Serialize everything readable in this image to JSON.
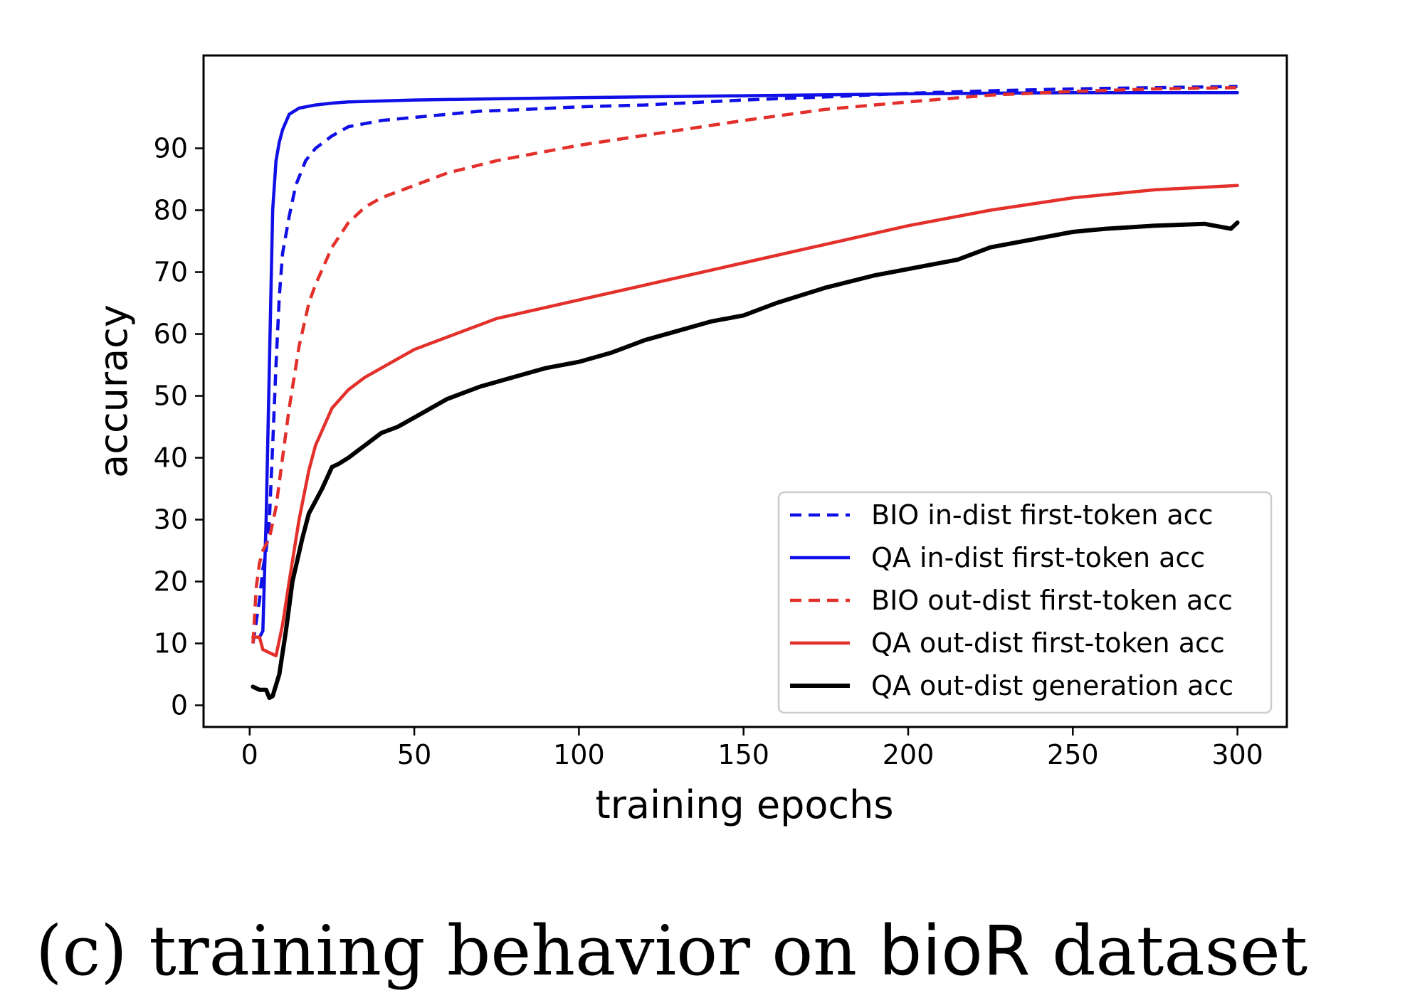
{
  "chart_data": {
    "type": "line",
    "xlabel": "training epochs",
    "ylabel": "accuracy",
    "xlim": [
      -14,
      315
    ],
    "ylim": [
      -3.5,
      105
    ],
    "xticks": [
      0,
      50,
      100,
      150,
      200,
      250,
      300
    ],
    "yticks": [
      0,
      10,
      20,
      30,
      40,
      50,
      60,
      70,
      80,
      90
    ],
    "grid": false,
    "legend_position": "lower-right",
    "series": [
      {
        "name": "BIO in-dist first-token acc",
        "color": "#1010e6",
        "style": "dashed",
        "x": [
          1,
          3,
          4,
          5,
          6,
          7,
          8,
          9,
          10,
          12,
          14,
          17,
          20,
          25,
          30,
          40,
          50,
          60,
          70,
          80,
          100,
          120,
          150,
          175,
          200,
          225,
          250,
          275,
          300
        ],
        "y": [
          10,
          17,
          22,
          25,
          30,
          42,
          55,
          66,
          73,
          79,
          84,
          88,
          90,
          92,
          93.5,
          94.5,
          95,
          95.5,
          96,
          96.2,
          96.7,
          97,
          97.8,
          98.3,
          98.9,
          99.3,
          99.6,
          99.8,
          100
        ]
      },
      {
        "name": "QA in-dist first-token acc",
        "color": "#1010e6",
        "style": "solid",
        "x": [
          1,
          2,
          3,
          4,
          5,
          6,
          7,
          8,
          9,
          10,
          12,
          15,
          20,
          25,
          30,
          50,
          75,
          100,
          150,
          200,
          250,
          300
        ],
        "y": [
          11,
          11,
          11,
          12,
          30,
          55,
          80,
          88,
          91,
          93,
          95.5,
          96.5,
          97,
          97.3,
          97.5,
          97.8,
          98,
          98.2,
          98.5,
          98.8,
          99,
          99
        ]
      },
      {
        "name": "BIO out-dist first-token acc",
        "color": "#e3302b",
        "style": "dashed",
        "x": [
          1,
          2,
          3,
          4,
          5,
          6,
          8,
          10,
          12,
          15,
          18,
          20,
          25,
          30,
          35,
          40,
          50,
          60,
          75,
          100,
          125,
          150,
          175,
          200,
          225,
          250,
          275,
          300
        ],
        "y": [
          10,
          19,
          23,
          25,
          26,
          27,
          32,
          40,
          48,
          58,
          65,
          68,
          74,
          78,
          80.5,
          82,
          84,
          86,
          88,
          90.5,
          92.5,
          94.5,
          96.3,
          97.5,
          98.6,
          99.2,
          99.6,
          99.8
        ]
      },
      {
        "name": "QA out-dist first-token acc",
        "color": "#e3302b",
        "style": "solid",
        "x": [
          1,
          3,
          4,
          6,
          8,
          10,
          12,
          15,
          18,
          20,
          25,
          30,
          35,
          40,
          50,
          60,
          75,
          100,
          125,
          150,
          175,
          200,
          225,
          250,
          275,
          300
        ],
        "y": [
          11,
          11,
          9,
          8.5,
          8,
          13,
          20,
          30,
          38,
          42,
          48,
          51,
          53,
          54.5,
          57.5,
          59.5,
          62.5,
          65.5,
          68.5,
          71.5,
          74.5,
          77.5,
          80,
          82,
          83.3,
          84
        ]
      },
      {
        "name": "QA out-dist generation acc",
        "color": "#000000",
        "style": "solid",
        "x": [
          1,
          3,
          5,
          6,
          7,
          9,
          11,
          13,
          16,
          18,
          20,
          22,
          25,
          27,
          30,
          35,
          40,
          45,
          50,
          60,
          70,
          80,
          90,
          100,
          110,
          120,
          130,
          140,
          150,
          160,
          175,
          190,
          200,
          215,
          225,
          240,
          250,
          260,
          275,
          290,
          298,
          300
        ],
        "y": [
          3,
          2.5,
          2.5,
          1.2,
          1.5,
          5,
          12,
          20,
          27,
          31,
          33,
          35,
          38.5,
          39,
          40,
          42,
          44,
          45,
          46.5,
          49.5,
          51.5,
          53,
          54.5,
          55.5,
          57,
          59,
          60.5,
          62,
          63,
          65,
          67.5,
          69.5,
          70.5,
          72,
          74,
          75.5,
          76.5,
          77,
          77.5,
          77.8,
          77,
          78
        ]
      }
    ],
    "caption": {
      "prefix": "(c) training behavior on ",
      "emph": "bioR",
      "suffix": " dataset"
    }
  }
}
